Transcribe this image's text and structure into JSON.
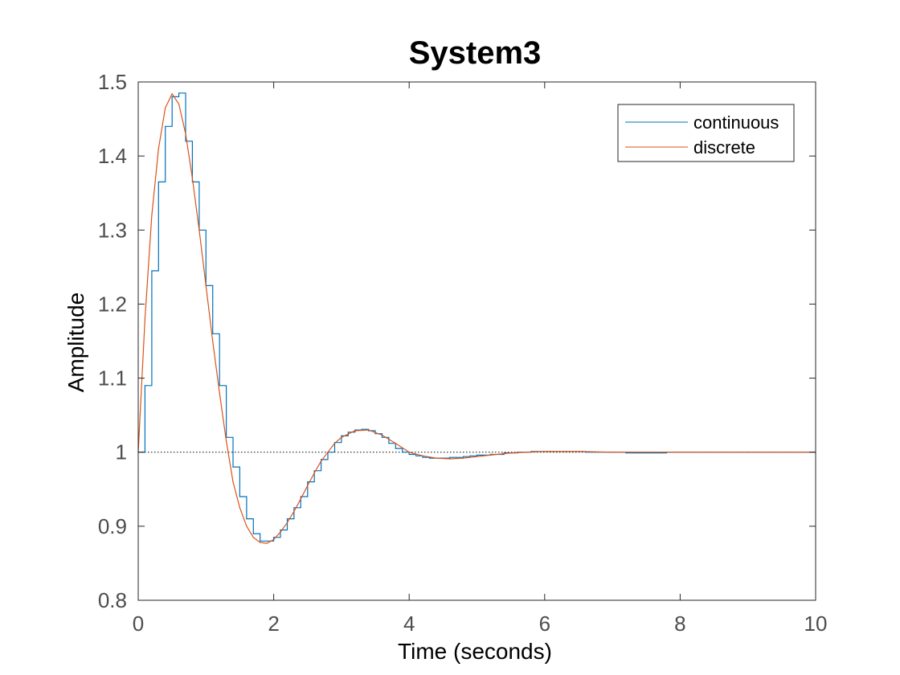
{
  "chart_data": {
    "type": "line",
    "title": "System3",
    "xlabel": "Time (seconds)",
    "ylabel": "Amplitude",
    "xlim": [
      0,
      10
    ],
    "ylim": [
      0.8,
      1.5
    ],
    "x_ticks": [
      "0",
      "2",
      "4",
      "6",
      "8",
      "10"
    ],
    "y_ticks": [
      "0.8",
      "0.9",
      "1",
      "1.1",
      "1.2",
      "1.3",
      "1.4",
      "1.5"
    ],
    "grid": false,
    "legend_position": "top-right",
    "reference_line": {
      "y": 1,
      "style": "dotted"
    },
    "sample_time": 0.1,
    "series": [
      {
        "name": "continuous",
        "color": "#0072BD",
        "style": "stairs",
        "x": [
          0,
          0.1,
          0.2,
          0.3,
          0.4,
          0.5,
          0.6,
          0.7,
          0.8,
          0.9,
          1.0,
          1.1,
          1.2,
          1.3,
          1.4,
          1.5,
          1.6,
          1.7,
          1.8,
          1.9,
          2.0,
          2.1,
          2.2,
          2.3,
          2.4,
          2.5,
          2.6,
          2.7,
          2.8,
          2.9,
          3.0,
          3.1,
          3.2,
          3.3,
          3.4,
          3.5,
          3.6,
          3.7,
          3.8,
          3.9,
          4.0,
          4.1,
          4.2,
          4.3,
          4.4,
          4.5,
          4.6,
          4.7,
          4.8,
          4.9,
          5.0,
          5.2,
          5.4,
          5.6,
          5.8,
          6.0,
          6.2,
          6.4,
          6.6,
          6.8,
          7.0,
          7.2,
          7.4,
          7.6,
          7.8,
          8.0,
          10.0
        ],
        "y": [
          1.0,
          1.09,
          1.245,
          1.365,
          1.44,
          1.48,
          1.485,
          1.42,
          1.365,
          1.3,
          1.225,
          1.16,
          1.09,
          1.02,
          0.98,
          0.94,
          0.91,
          0.89,
          0.88,
          0.88,
          0.885,
          0.895,
          0.91,
          0.925,
          0.94,
          0.96,
          0.975,
          0.99,
          1.0,
          1.013,
          1.022,
          1.027,
          1.03,
          1.031,
          1.029,
          1.025,
          1.02,
          1.012,
          1.005,
          1.0,
          0.997,
          0.995,
          0.993,
          0.992,
          0.992,
          0.992,
          0.993,
          0.993,
          0.994,
          0.995,
          0.996,
          0.997,
          0.999,
          1.0,
          1.001,
          1.001,
          1.001,
          1.001,
          1.0,
          1.0,
          1.0,
          0.999,
          0.999,
          0.999,
          1.0,
          1.0,
          1.0
        ]
      },
      {
        "name": "discrete",
        "color": "#D95319",
        "style": "line",
        "x": [
          0,
          0.1,
          0.2,
          0.3,
          0.4,
          0.5,
          0.6,
          0.7,
          0.8,
          0.9,
          1.0,
          1.1,
          1.2,
          1.3,
          1.4,
          1.5,
          1.6,
          1.7,
          1.8,
          1.9,
          2.0,
          2.1,
          2.2,
          2.3,
          2.4,
          2.5,
          2.6,
          2.7,
          2.8,
          2.9,
          3.0,
          3.2,
          3.4,
          3.6,
          3.8,
          4.0,
          4.2,
          4.4,
          4.6,
          4.8,
          5.0,
          5.5,
          6.0,
          6.5,
          7.0,
          7.5,
          8.0,
          9.0,
          10.0
        ],
        "y": [
          1.0,
          1.18,
          1.32,
          1.41,
          1.465,
          1.484,
          1.47,
          1.43,
          1.37,
          1.3,
          1.225,
          1.15,
          1.08,
          1.015,
          0.96,
          0.925,
          0.9,
          0.885,
          0.878,
          0.877,
          0.882,
          0.892,
          0.905,
          0.92,
          0.937,
          0.955,
          0.972,
          0.988,
          1.0,
          1.012,
          1.02,
          1.029,
          1.03,
          1.023,
          1.012,
          1.0,
          0.995,
          0.992,
          0.991,
          0.992,
          0.994,
          0.999,
          1.001,
          1.001,
          1.0,
          1.0,
          1.0,
          1.0,
          1.0
        ]
      }
    ]
  }
}
